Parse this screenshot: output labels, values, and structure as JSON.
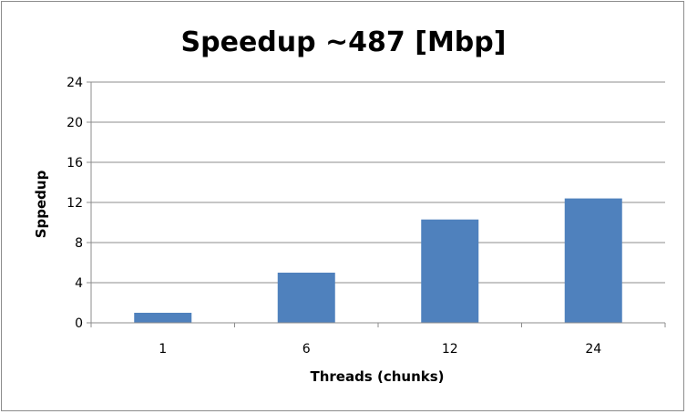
{
  "chart_data": {
    "type": "bar",
    "title": "Speedup ~487 [Mbp]",
    "xlabel": "Threads (chunks)",
    "ylabel": "Sppedup",
    "categories": [
      "1",
      "6",
      "12",
      "24"
    ],
    "values": [
      1.0,
      5.0,
      10.3,
      12.4
    ],
    "ylim": [
      0,
      24
    ],
    "yticks": [
      0,
      4,
      8,
      12,
      16,
      20,
      24
    ],
    "grid": true,
    "legend": "none",
    "bar_color": "#4f81bd"
  }
}
